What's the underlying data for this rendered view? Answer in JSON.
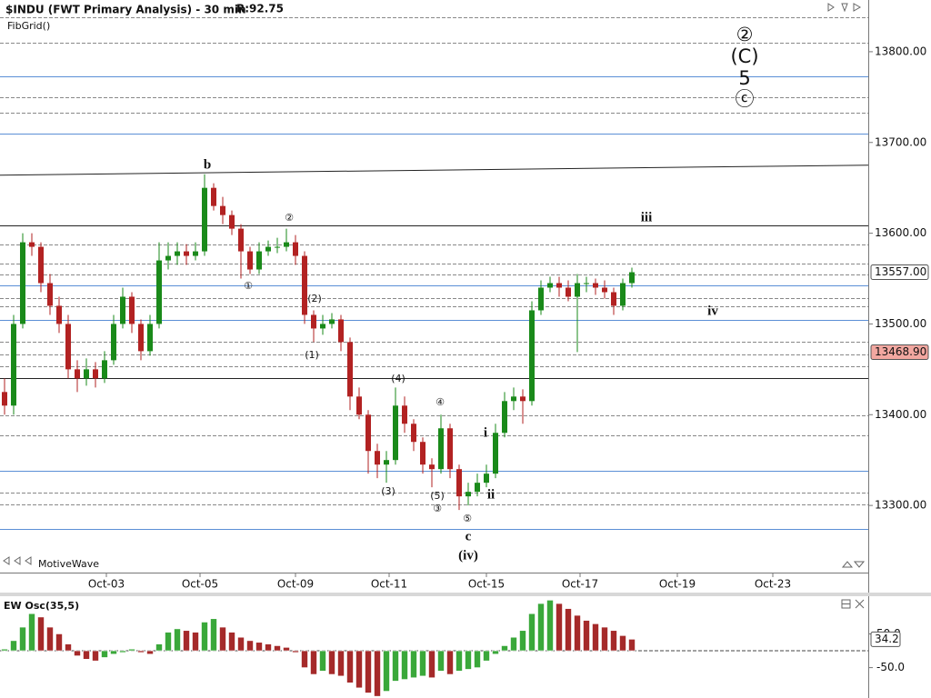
{
  "chart_data": [
    {
      "type": "candlestick",
      "title": "$INDU (FWT Primary Analysis) - 30 min",
      "subtitle": "R:92.75",
      "indicator": "FibGrid()",
      "watermark": "MotiveWave",
      "up_color": "#1a8a1a",
      "down_color": "#b22222",
      "xlim": [
        -0.5,
        95
      ],
      "xticks": [
        {
          "value": 11.2,
          "label": "Oct-03"
        },
        {
          "value": 21.5,
          "label": "Oct-05"
        },
        {
          "value": 32,
          "label": "Oct-09"
        },
        {
          "value": 42.3,
          "label": "Oct-11"
        },
        {
          "value": 53,
          "label": "Oct-15"
        },
        {
          "value": 63.3,
          "label": "Oct-17"
        },
        {
          "value": 74,
          "label": "Oct-19"
        },
        {
          "value": 84.5,
          "label": "Oct-23"
        }
      ],
      "ylim": [
        13226,
        13857
      ],
      "yticks": [
        {
          "value": 13300,
          "label": "13300.00"
        },
        {
          "value": 13400,
          "label": "13400.00"
        },
        {
          "value": 13500,
          "label": "13500.00"
        },
        {
          "value": 13600,
          "label": "13600.00"
        },
        {
          "value": 13700,
          "label": "13700.00"
        },
        {
          "value": 13800,
          "label": "13800.00"
        }
      ],
      "price_markers": [
        {
          "value": 13557,
          "label": "13557.00",
          "color": "#ffffff"
        },
        {
          "value": 13468.9,
          "label": "13468.90",
          "color": "#f2a7a0"
        }
      ],
      "fib_groups": [
        {
          "color": "#888888",
          "dashed": true,
          "values": [
            13838,
            13810,
            13750,
            13733,
            13588,
            13567,
            13555,
            13528,
            13519,
            13480,
            13466,
            13453,
            13399,
            13377,
            13314,
            13301
          ]
        },
        {
          "color": "#5b8fd6",
          "dashed": false,
          "values": [
            13773,
            13710,
            13543,
            13504,
            13338,
            13274
          ]
        },
        {
          "color": "#222222",
          "dashed": false,
          "values": [
            13609,
            13440
          ]
        }
      ],
      "trendline": [
        13664,
        13675
      ],
      "annotations": [
        "b",
        "①",
        "②",
        "(2)",
        "(1)",
        "(4)",
        "④",
        "(3)",
        "(5)",
        "③",
        "⑤",
        "c",
        "(iv)",
        "i",
        "ii",
        "iii",
        "iv",
        "②",
        "(C)",
        "5",
        "ⓒ"
      ],
      "ohlc": [
        [
          13425,
          13440,
          13400,
          13410
        ],
        [
          13410,
          13510,
          13400,
          13500
        ],
        [
          13500,
          13600,
          13495,
          13590
        ],
        [
          13590,
          13600,
          13575,
          13585
        ],
        [
          13585,
          13590,
          13535,
          13545
        ],
        [
          13545,
          13555,
          13510,
          13520
        ],
        [
          13520,
          13530,
          13490,
          13500
        ],
        [
          13500,
          13510,
          13440,
          13450
        ],
        [
          13450,
          13460,
          13425,
          13440
        ],
        [
          13440,
          13462,
          13432,
          13450
        ],
        [
          13450,
          13458,
          13430,
          13440
        ],
        [
          13440,
          13470,
          13435,
          13460
        ],
        [
          13460,
          13510,
          13455,
          13500
        ],
        [
          13500,
          13540,
          13495,
          13530
        ],
        [
          13530,
          13535,
          13490,
          13500
        ],
        [
          13500,
          13505,
          13460,
          13470
        ],
        [
          13470,
          13510,
          13465,
          13500
        ],
        [
          13500,
          13590,
          13495,
          13570
        ],
        [
          13570,
          13590,
          13560,
          13575
        ],
        [
          13575,
          13590,
          13565,
          13580
        ],
        [
          13580,
          13588,
          13565,
          13575
        ],
        [
          13575,
          13590,
          13570,
          13580
        ],
        [
          13580,
          13665,
          13575,
          13650
        ],
        [
          13650,
          13655,
          13625,
          13630
        ],
        [
          13630,
          13640,
          13610,
          13620
        ],
        [
          13620,
          13625,
          13598,
          13605
        ],
        [
          13605,
          13610,
          13550,
          13580
        ],
        [
          13580,
          13585,
          13555,
          13560
        ],
        [
          13560,
          13590,
          13555,
          13580
        ],
        [
          13580,
          13592,
          13575,
          13585
        ],
        [
          13585,
          13595,
          13578,
          13585
        ],
        [
          13585,
          13605,
          13580,
          13590
        ],
        [
          13590,
          13598,
          13565,
          13575
        ],
        [
          13575,
          13580,
          13500,
          13510
        ],
        [
          13510,
          13515,
          13480,
          13495
        ],
        [
          13495,
          13510,
          13488,
          13500
        ],
        [
          13500,
          13512,
          13495,
          13505
        ],
        [
          13505,
          13510,
          13470,
          13480
        ],
        [
          13480,
          13485,
          13405,
          13420
        ],
        [
          13420,
          13430,
          13395,
          13400
        ],
        [
          13400,
          13405,
          13335,
          13360
        ],
        [
          13360,
          13368,
          13330,
          13345
        ],
        [
          13345,
          13360,
          13325,
          13350
        ],
        [
          13350,
          13430,
          13345,
          13410
        ],
        [
          13410,
          13420,
          13380,
          13390
        ],
        [
          13390,
          13395,
          13360,
          13370
        ],
        [
          13370,
          13375,
          13335,
          13345
        ],
        [
          13345,
          13352,
          13320,
          13340
        ],
        [
          13340,
          13400,
          13335,
          13385
        ],
        [
          13385,
          13390,
          13330,
          13340
        ],
        [
          13340,
          13345,
          13295,
          13310
        ],
        [
          13310,
          13325,
          13300,
          13315
        ],
        [
          13315,
          13335,
          13310,
          13325
        ],
        [
          13325,
          13345,
          13320,
          13335
        ],
        [
          13335,
          13390,
          13330,
          13380
        ],
        [
          13380,
          13425,
          13375,
          13415
        ],
        [
          13415,
          13430,
          13405,
          13420
        ],
        [
          13420,
          13428,
          13390,
          13415
        ],
        [
          13415,
          13525,
          13410,
          13515
        ],
        [
          13515,
          13548,
          13510,
          13540
        ],
        [
          13540,
          13552,
          13535,
          13545
        ],
        [
          13545,
          13552,
          13530,
          13540
        ],
        [
          13540,
          13548,
          13525,
          13530
        ],
        [
          13530,
          13555,
          13469,
          13545
        ],
        [
          13545,
          13552,
          13535,
          13545
        ],
        [
          13545,
          13550,
          13532,
          13540
        ],
        [
          13540,
          13548,
          13528,
          13535
        ],
        [
          13535,
          13540,
          13510,
          13520
        ],
        [
          13520,
          13550,
          13515,
          13545
        ],
        [
          13545,
          13562,
          13540,
          13557
        ]
      ]
    },
    {
      "type": "bar",
      "title": "EW Osc(35,5)",
      "up_color": "#3aa83a",
      "down_color": "#a52a2a",
      "xlim": [
        -0.5,
        95
      ],
      "ylim": [
        -140,
        159
      ],
      "yticks": [
        {
          "value": 50,
          "label": "50.0"
        },
        {
          "value": -50,
          "label": "-50.0"
        }
      ],
      "values": [
        5,
        30,
        70,
        110,
        100,
        70,
        50,
        20,
        -15,
        -25,
        -30,
        -20,
        -10,
        -5,
        5,
        -5,
        -10,
        20,
        55,
        65,
        60,
        55,
        85,
        95,
        70,
        55,
        40,
        30,
        25,
        20,
        15,
        10,
        -5,
        -50,
        -70,
        -60,
        -70,
        -75,
        -95,
        -110,
        -125,
        -135,
        -120,
        -90,
        -85,
        -80,
        -75,
        -80,
        -60,
        -70,
        -60,
        -55,
        -50,
        -30,
        -10,
        15,
        40,
        60,
        110,
        140,
        150,
        140,
        125,
        105,
        90,
        80,
        70,
        60,
        45,
        34.2
      ]
    }
  ]
}
